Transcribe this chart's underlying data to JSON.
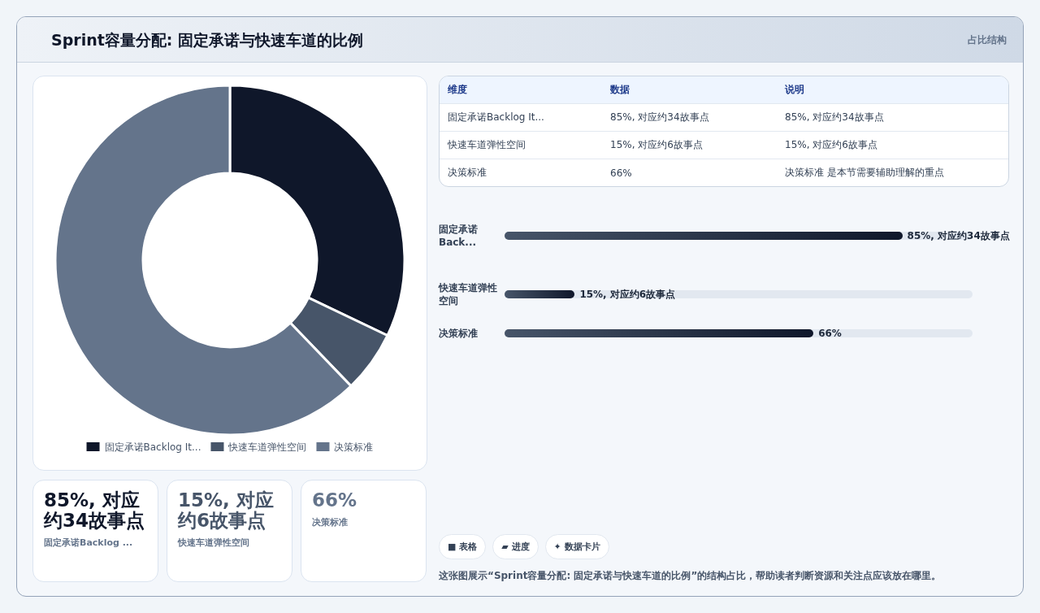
{
  "chart_data": [
    {
      "type": "other",
      "title": "Sprint容量分配: 固定承诺与快速车道的比例",
      "subtitle": "占比结构"
    },
    {
      "type": "donut",
      "categories": [
        "固定承诺Backlog It...",
        "快速车道弹性空间",
        "决策标准"
      ],
      "values": [
        32.1,
        5.7,
        62.2
      ],
      "colors": [
        "#0f172a",
        "#475569",
        "#64748b"
      ],
      "legend": "bottom"
    },
    {
      "type": "other",
      "annotations": [
        "维度",
        "数据",
        "说明",
        "固定承诺Backlog It...",
        "85%, 对应约34故事点",
        "85%, 对应约34故事点",
        "快速车道弹性空间",
        "15%, 对应约6故事点",
        "15%, 对应约6故事点",
        "决策标准",
        "66%",
        "决策标准 是本节需要辅助理解的重点"
      ]
    },
    {
      "type": "bar",
      "orientation": "horizontal",
      "categories": [
        "固定承诺Back...",
        "快速车道弹性空间",
        "决策标准"
      ],
      "values": [
        85,
        15,
        66
      ],
      "color": "#0f172a",
      "value_labels": [
        "85%, 对应约34故事点",
        "15%, 对应约6故事点",
        "66%"
      ]
    },
    {
      "type": "other",
      "annotations": [
        "85%, 对应约34故事点",
        "固定承诺Backlog ...",
        "15%, 对应约6故事点",
        "快速车道弹性空间",
        "66%",
        "决策标准"
      ]
    },
    {
      "type": "other",
      "annotations": [
        "■ 表格",
        "▰ 进度",
        "✦ 数据卡片",
        "这张图展示“Sprint容量分配: 固定承诺与快速车道的比例”的结构占比，帮助读者判断资源和关注点应该放在哪里。"
      ]
    }
  ]
}
